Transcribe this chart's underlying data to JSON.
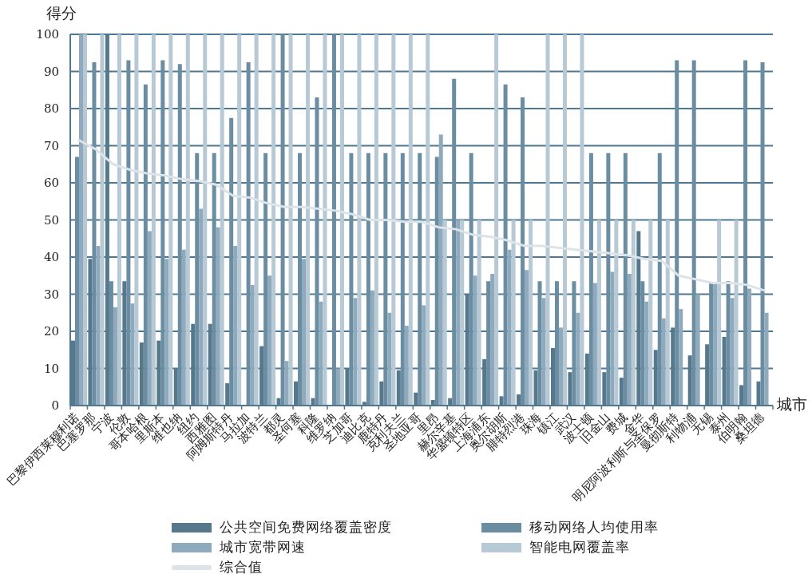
{
  "chart_data": {
    "type": "bar",
    "xlabel": "城市",
    "ylabel": "得分",
    "categories": [
      "巴黎伊西莱穆利诺",
      "巴塞罗那",
      "宁波",
      "伦敦",
      "哥本哈根",
      "里斯本",
      "维也纳",
      "纽约",
      "西雅图",
      "阿姆斯特丹",
      "马拉加",
      "波特兰",
      "都灵",
      "圣何塞",
      "科隆",
      "维罗纳",
      "芝加哥",
      "迪比克",
      "鹿特丹",
      "克利夫兰",
      "圣地亚哥",
      "里昂",
      "赫尔辛基",
      "华盛顿特区",
      "上海浦东",
      "奥尔胡斯",
      "腓特烈港",
      "珠海",
      "镇江",
      "武汉",
      "波士顿",
      "旧金山",
      "费城",
      "金华",
      "明尼阿波利斯与圣保罗",
      "曼彻斯特",
      "利物浦",
      "无锡",
      "泰州",
      "伯明翰",
      "桑坦德"
    ],
    "series": [
      {
        "name": "公共空间免费网络覆盖密度",
        "color": "#56788d",
        "values": [
          17.5,
          39.5,
          100,
          33.5,
          17,
          17.5,
          10,
          22,
          22,
          6,
          0,
          16,
          2,
          6.5,
          2,
          0,
          10,
          1,
          6.5,
          9.5,
          3.5,
          1.5,
          2,
          30,
          12.5,
          2.5,
          3,
          9.5,
          15.5,
          9,
          14,
          9,
          7.5,
          47,
          15,
          21,
          13.5,
          16.5,
          18.5,
          5.5,
          6.5
        ]
      },
      {
        "name": "移动网络人均使用率",
        "color": "#6a8da2",
        "values": [
          67,
          92.5,
          33.5,
          93,
          86.5,
          93,
          92,
          68,
          68,
          77.5,
          92.5,
          68,
          100,
          68,
          83,
          100,
          68,
          68,
          68,
          68,
          68,
          67,
          88,
          68,
          33.5,
          86.5,
          83,
          33.5,
          33.5,
          33.5,
          68,
          68,
          68,
          33.5,
          68,
          93,
          93,
          33,
          33.5,
          93,
          92.5
        ]
      },
      {
        "name": "城市宽带网速",
        "color": "#8eaabc",
        "values": [
          100,
          43,
          26.5,
          27.5,
          47,
          39.5,
          42,
          53,
          48,
          43,
          32.5,
          35,
          12,
          39.5,
          28,
          10,
          29,
          31,
          25,
          21.5,
          27,
          73,
          50,
          35,
          35.5,
          42,
          36.5,
          29,
          21,
          25,
          33,
          36,
          35.5,
          28,
          23.5,
          26,
          30,
          33,
          29,
          31.5,
          25
        ]
      },
      {
        "name": "智能电网覆盖率",
        "color": "#b6c9d5",
        "values": [
          100,
          100,
          100,
          100,
          100,
          100,
          100,
          100,
          100,
          100,
          100,
          100,
          100,
          100,
          100,
          100,
          100,
          100,
          100,
          100,
          100,
          50,
          50,
          50,
          100,
          50,
          50,
          100,
          100,
          100,
          50,
          50,
          50,
          50,
          50,
          0,
          0,
          50,
          50,
          0,
          0
        ]
      },
      {
        "name": "综合值",
        "type": "line",
        "color": "#dce3e9",
        "values": [
          71.5,
          69,
          65,
          63.5,
          62.5,
          62,
          61,
          60.5,
          59.5,
          56.5,
          56,
          54.5,
          53.5,
          53.5,
          53,
          52.5,
          51.5,
          50,
          50,
          49.5,
          49.5,
          48,
          47.5,
          46,
          45.5,
          44.5,
          43,
          43,
          42.5,
          42,
          41.5,
          41,
          40.5,
          39.5,
          39,
          35,
          34,
          33,
          33,
          32.5,
          31
        ]
      }
    ],
    "ylim": [
      0,
      100
    ],
    "yticks": [
      0,
      10,
      20,
      30,
      40,
      50,
      60,
      70,
      80,
      90,
      100
    ],
    "grid": "y",
    "legend": "bottom"
  }
}
